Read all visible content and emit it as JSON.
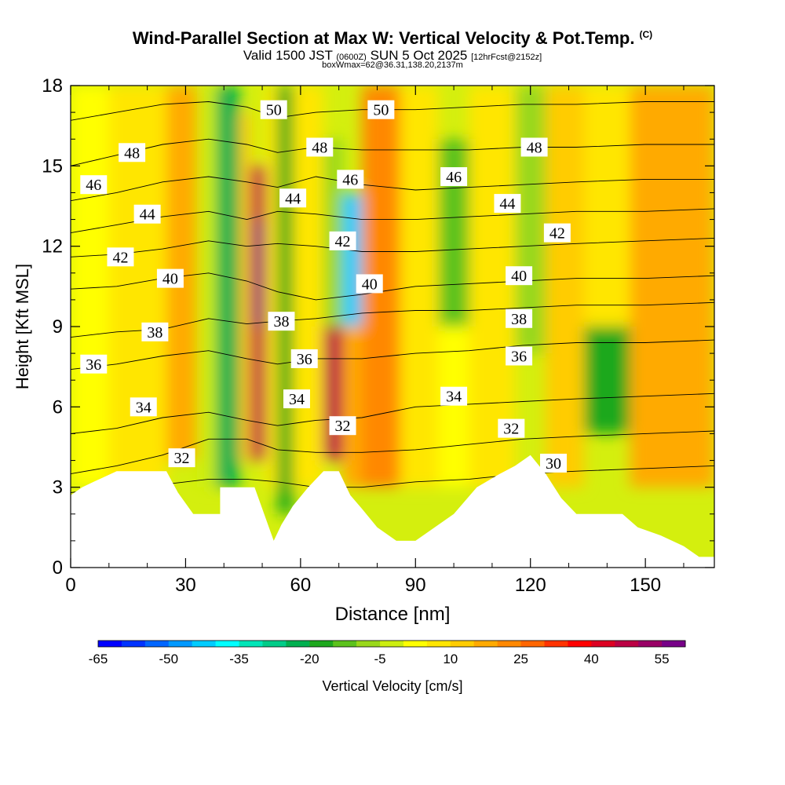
{
  "header": {
    "title": "Wind-Parallel Section at Max W: Vertical Velocity & Pot.Temp.",
    "copyright": "(C)",
    "valid_prefix": "Valid 1500 JST",
    "valid_utc": "(0600Z)",
    "valid_date": "SUN 5 Oct 2025",
    "forecast_info": "[12hrFcst@2152z]",
    "box_info": "boxWmax=62@36.31,138.20,2137m"
  },
  "colorbar": {
    "label": "Vertical Velocity [cm/s]",
    "tick_labels": [
      "-65",
      "-50",
      "-35",
      "-20",
      "-5",
      "10",
      "25",
      "40",
      "55"
    ],
    "colors": [
      "#0000ff",
      "#0033ff",
      "#0066ff",
      "#0099ff",
      "#00ccff",
      "#00ffff",
      "#00e6b8",
      "#00cc88",
      "#00b050",
      "#1ea81e",
      "#5cc21c",
      "#99d81a",
      "#ccee10",
      "#ffff00",
      "#ffe600",
      "#ffcc00",
      "#ffaa00",
      "#ff8800",
      "#ff6600",
      "#ff3300",
      "#ff0000",
      "#dd0022",
      "#bb0044",
      "#990066",
      "#770088"
    ]
  },
  "chart_data": {
    "type": "heatmap",
    "title": "Wind-Parallel Section at Max W: Vertical Velocity & Pot.Temp.",
    "xlabel": "Distance [nm]",
    "ylabel": "Height [Kft MSL]",
    "xlim": [
      0,
      168
    ],
    "ylim": [
      0,
      18
    ],
    "xticks": [
      0,
      30,
      60,
      90,
      120,
      150
    ],
    "yticks": [
      0,
      3,
      6,
      9,
      12,
      15,
      18
    ],
    "vertical_velocity_cells": [
      {
        "x": [
          0,
          10
        ],
        "y": [
          3,
          18
        ],
        "w": 0
      },
      {
        "x": [
          10,
          25
        ],
        "y": [
          3,
          18
        ],
        "w": 5
      },
      {
        "x": [
          25,
          33
        ],
        "y": [
          4,
          18
        ],
        "w": 15
      },
      {
        "x": [
          33,
          38
        ],
        "y": [
          3,
          18
        ],
        "w": -5
      },
      {
        "x": [
          38,
          44
        ],
        "y": [
          3,
          18
        ],
        "w": -25
      },
      {
        "x": [
          44,
          47
        ],
        "y": [
          4,
          17
        ],
        "w": 10
      },
      {
        "x": [
          47,
          51
        ],
        "y": [
          4,
          15
        ],
        "w": 45
      },
      {
        "x": [
          48,
          50
        ],
        "y": [
          9,
          13
        ],
        "w": 60
      },
      {
        "x": [
          51,
          54
        ],
        "y": [
          3,
          18
        ],
        "w": 5
      },
      {
        "x": [
          54,
          58
        ],
        "y": [
          2,
          18
        ],
        "w": -20
      },
      {
        "x": [
          58,
          66
        ],
        "y": [
          3,
          18
        ],
        "w": 5
      },
      {
        "x": [
          66,
          71
        ],
        "y": [
          4,
          9
        ],
        "w": 45
      },
      {
        "x": [
          66,
          71
        ],
        "y": [
          9,
          16
        ],
        "w": -10
      },
      {
        "x": [
          71,
          76
        ],
        "y": [
          9,
          14
        ],
        "w": -45
      },
      {
        "x": [
          71,
          76
        ],
        "y": [
          3,
          9
        ],
        "w": 15
      },
      {
        "x": [
          76,
          86
        ],
        "y": [
          3,
          18
        ],
        "w": 20
      },
      {
        "x": [
          86,
          96
        ],
        "y": [
          3,
          18
        ],
        "w": 5
      },
      {
        "x": [
          96,
          104
        ],
        "y": [
          9,
          16
        ],
        "w": -15
      },
      {
        "x": [
          96,
          104
        ],
        "y": [
          3,
          9
        ],
        "w": 0
      },
      {
        "x": [
          104,
          116
        ],
        "y": [
          3,
          18
        ],
        "w": 8
      },
      {
        "x": [
          116,
          124
        ],
        "y": [
          8,
          18
        ],
        "w": -10
      },
      {
        "x": [
          124,
          134
        ],
        "y": [
          3,
          18
        ],
        "w": 12
      },
      {
        "x": [
          134,
          146
        ],
        "y": [
          5,
          9
        ],
        "w": -20
      },
      {
        "x": [
          134,
          146
        ],
        "y": [
          9,
          18
        ],
        "w": 5
      },
      {
        "x": [
          146,
          168
        ],
        "y": [
          3,
          18
        ],
        "w": 15
      }
    ],
    "terrain_profile": {
      "x": [
        0,
        3,
        6,
        12,
        25,
        28,
        32,
        39,
        39,
        45,
        48,
        53,
        55,
        58,
        62,
        66,
        70,
        73,
        76,
        80,
        85,
        90,
        94,
        100,
        106,
        112,
        116,
        120,
        124,
        128,
        132,
        136,
        140,
        144,
        148,
        154,
        160,
        164,
        168
      ],
      "y": [
        2.7,
        3.0,
        3.2,
        3.6,
        3.6,
        2.8,
        2.0,
        2.0,
        3.0,
        3.0,
        3.0,
        1.0,
        1.6,
        2.3,
        3.0,
        3.6,
        3.6,
        2.7,
        2.2,
        1.5,
        1.0,
        1.0,
        1.4,
        2.0,
        3.0,
        3.5,
        3.8,
        4.2,
        3.5,
        2.6,
        2.0,
        2.0,
        2.0,
        2.0,
        1.5,
        1.2,
        0.8,
        0.4,
        0.4
      ]
    },
    "theta_contours": [
      {
        "label": "30",
        "y": [
          2.8,
          3.0,
          3.1,
          3.3,
          3.3,
          3.2,
          3.0,
          3.0,
          3.2,
          3.3,
          3.5,
          3.6,
          3.7,
          3.8
        ]
      },
      {
        "label": "32",
        "y": [
          3.5,
          3.8,
          4.2,
          4.8,
          4.8,
          4.4,
          4.3,
          4.3,
          4.4,
          4.6,
          4.8,
          4.9,
          5.0,
          5.1
        ]
      },
      {
        "label": "34",
        "y": [
          5.0,
          5.2,
          5.6,
          5.8,
          5.5,
          5.3,
          5.5,
          5.6,
          6.0,
          6.1,
          6.2,
          6.3,
          6.4,
          6.5
        ]
      },
      {
        "label": "36",
        "y": [
          7.4,
          7.6,
          7.9,
          8.1,
          7.8,
          7.6,
          7.8,
          7.8,
          8.0,
          8.1,
          8.3,
          8.4,
          8.4,
          8.5
        ]
      },
      {
        "label": "38",
        "y": [
          8.6,
          8.8,
          8.9,
          9.3,
          9.1,
          9.2,
          9.3,
          9.5,
          9.6,
          9.6,
          9.7,
          9.8,
          9.8,
          9.9
        ]
      },
      {
        "label": "40",
        "y": [
          10.4,
          10.5,
          10.8,
          11.0,
          10.7,
          10.3,
          10.0,
          10.2,
          10.5,
          10.6,
          10.7,
          10.8,
          10.8,
          10.9
        ]
      },
      {
        "label": "42",
        "y": [
          11.6,
          11.7,
          11.9,
          12.2,
          12.0,
          12.1,
          12.0,
          11.8,
          11.8,
          11.9,
          12.0,
          12.1,
          12.2,
          12.3
        ]
      },
      {
        "label": "44",
        "y": [
          12.5,
          12.8,
          13.1,
          13.3,
          13.0,
          13.3,
          13.2,
          13.0,
          13.0,
          13.1,
          13.2,
          13.3,
          13.3,
          13.4
        ]
      },
      {
        "label": "46",
        "y": [
          13.7,
          14.0,
          14.4,
          14.6,
          14.4,
          14.2,
          14.6,
          14.3,
          14.1,
          14.2,
          14.3,
          14.4,
          14.5,
          14.5
        ]
      },
      {
        "label": "48",
        "y": [
          15.0,
          15.4,
          15.8,
          16.0,
          15.8,
          15.5,
          15.7,
          15.6,
          15.6,
          15.6,
          15.7,
          15.7,
          15.8,
          15.8
        ]
      },
      {
        "label": "50",
        "y": [
          16.7,
          17.0,
          17.3,
          17.4,
          17.2,
          16.8,
          17.0,
          17.1,
          17.1,
          17.2,
          17.3,
          17.3,
          17.4,
          17.4
        ]
      }
    ],
    "contour_x": [
      0,
      12,
      24,
      36,
      46,
      54,
      64,
      76,
      90,
      104,
      118,
      132,
      150,
      168
    ],
    "contour_labels": [
      {
        "text": "30",
        "x": 126,
        "y": 3.9
      },
      {
        "text": "32",
        "x": 29,
        "y": 4.1
      },
      {
        "text": "32",
        "x": 71,
        "y": 5.3
      },
      {
        "text": "32",
        "x": 115,
        "y": 5.2
      },
      {
        "text": "34",
        "x": 19,
        "y": 6.0
      },
      {
        "text": "34",
        "x": 59,
        "y": 6.3
      },
      {
        "text": "34",
        "x": 100,
        "y": 6.4
      },
      {
        "text": "36",
        "x": 6,
        "y": 7.6
      },
      {
        "text": "36",
        "x": 61,
        "y": 7.8
      },
      {
        "text": "36",
        "x": 117,
        "y": 7.9
      },
      {
        "text": "38",
        "x": 22,
        "y": 8.8
      },
      {
        "text": "38",
        "x": 55,
        "y": 9.2
      },
      {
        "text": "38",
        "x": 117,
        "y": 9.3
      },
      {
        "text": "40",
        "x": 26,
        "y": 10.8
      },
      {
        "text": "40",
        "x": 78,
        "y": 10.6
      },
      {
        "text": "40",
        "x": 117,
        "y": 10.9
      },
      {
        "text": "42",
        "x": 13,
        "y": 11.6
      },
      {
        "text": "42",
        "x": 71,
        "y": 12.2
      },
      {
        "text": "42",
        "x": 127,
        "y": 12.5
      },
      {
        "text": "44",
        "x": 20,
        "y": 13.2
      },
      {
        "text": "44",
        "x": 58,
        "y": 13.8
      },
      {
        "text": "44",
        "x": 114,
        "y": 13.6
      },
      {
        "text": "46",
        "x": 6,
        "y": 14.3
      },
      {
        "text": "46",
        "x": 73,
        "y": 14.5
      },
      {
        "text": "46",
        "x": 100,
        "y": 14.6
      },
      {
        "text": "48",
        "x": 16,
        "y": 15.5
      },
      {
        "text": "48",
        "x": 65,
        "y": 15.7
      },
      {
        "text": "48",
        "x": 121,
        "y": 15.7
      },
      {
        "text": "50",
        "x": 53,
        "y": 17.1
      },
      {
        "text": "50",
        "x": 81,
        "y": 17.1
      }
    ]
  }
}
